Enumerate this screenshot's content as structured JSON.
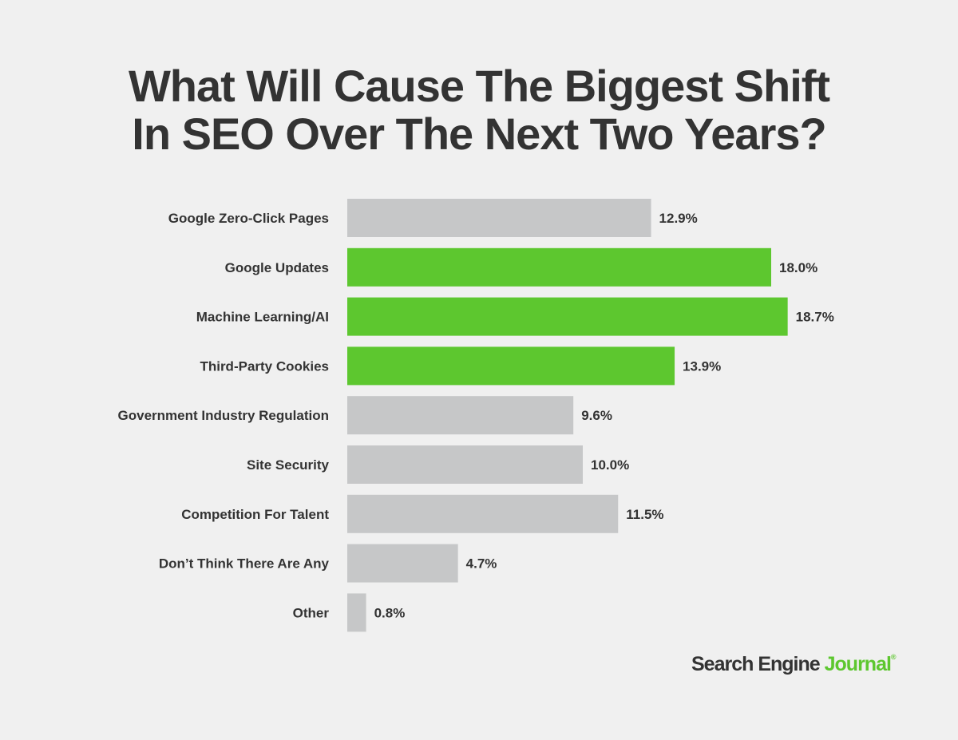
{
  "chart_data": {
    "type": "bar",
    "orientation": "horizontal",
    "title": "What Will Cause The Biggest Shift In SEO Over The Next Two Years?",
    "title_lines": [
      "What Will Cause The Biggest Shift",
      "In SEO Over The Next Two Years?"
    ],
    "categories": [
      "Google Zero-Click Pages",
      "Google Updates",
      "Machine Learning/AI",
      "Third-Party Cookies",
      "Government Industry Regulation",
      "Site Security",
      "Competition For Talent",
      "Don’t Think There Are Any",
      "Other"
    ],
    "values": [
      12.9,
      18.0,
      18.7,
      13.9,
      9.6,
      10.0,
      11.5,
      4.7,
      0.8
    ],
    "data_labels": [
      "12.9%",
      "18.0%",
      "18.7%",
      "13.9%",
      "9.6%",
      "10.0%",
      "11.5%",
      "4.7%",
      "0.8%"
    ],
    "highlighted": [
      false,
      true,
      true,
      true,
      false,
      false,
      false,
      false,
      false
    ],
    "xlim": [
      0,
      20
    ],
    "grid": false,
    "legend": "none"
  },
  "colors": {
    "background": "#f0f0f0",
    "bar_default": "#c6c7c8",
    "bar_highlight": "#5dc72f",
    "text": "#333333"
  },
  "logo": {
    "part1": "Search Engine ",
    "part2": "Journal",
    "mark": "®"
  }
}
